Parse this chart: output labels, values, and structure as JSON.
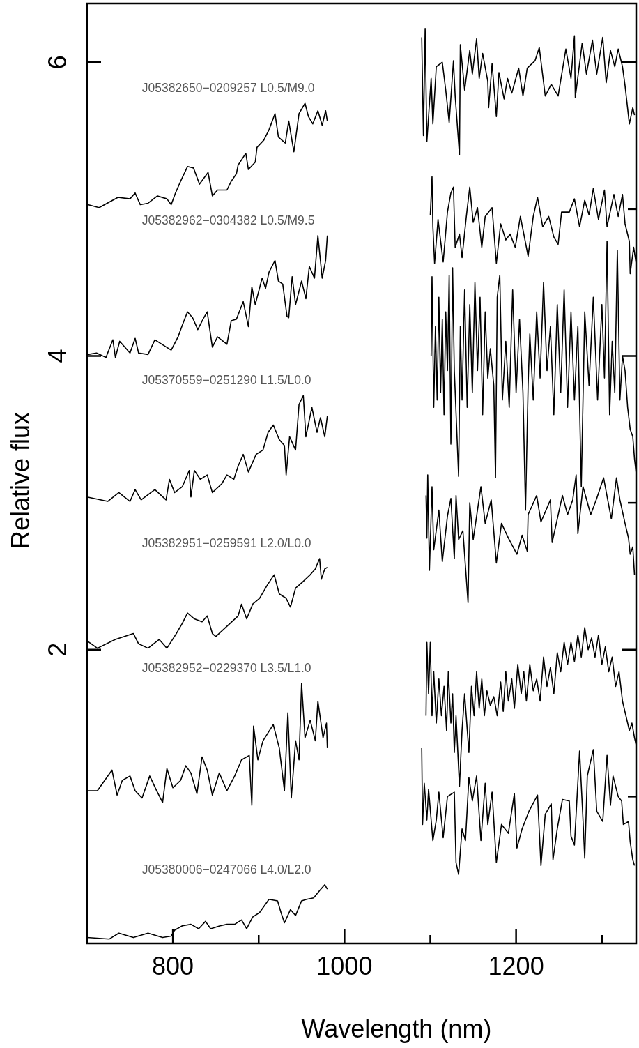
{
  "chart_data": {
    "type": "line",
    "xlabel": "Wavelength (nm)",
    "ylabel": "Relative flux",
    "xlim": [
      700,
      1340
    ],
    "ylim": [
      0,
      6.4
    ],
    "xticks": [
      800,
      {
        "value": 900,
        "label": null
      },
      1000,
      {
        "value": 1100,
        "label": null
      },
      1200,
      {
        "value": 1300,
        "label": null
      }
    ],
    "yticks": [
      {
        "value": 1,
        "label": null
      },
      2,
      {
        "value": 3,
        "label": null
      },
      4,
      {
        "value": 5,
        "label": null
      },
      6
    ],
    "series": [
      {
        "name": "J05382650−0209257 L0.5/M9.0",
        "color": "#000000",
        "x": [
          701,
          714,
          736,
          750,
          756,
          762,
          771,
          782,
          793,
          798,
          803,
          809,
          817,
          824,
          831,
          841,
          846,
          852,
          863,
          868,
          874,
          876,
          885,
          888,
          896,
          898,
          906,
          912,
          919,
          923,
          931,
          935,
          941,
          947,
          954,
          958,
          963,
          969,
          974,
          978,
          980,
          1040,
          1090,
          1092,
          1094,
          1096,
          1101,
          1103,
          1107,
          1114,
          1118,
          1122,
          1127,
          1129,
          1134,
          1135,
          1140,
          1146,
          1149,
          1154,
          1157,
          1161,
          1167,
          1168,
          1172,
          1177,
          1180,
          1186,
          1190,
          1195,
          1203,
          1208,
          1213,
          1222,
          1227,
          1234,
          1241,
          1249,
          1258,
          1264,
          1268,
          1269,
          1277,
          1282,
          1289,
          1294,
          1301,
          1305,
          1310,
          1315,
          1319,
          1324,
          1327,
          1332,
          1336,
          1338
        ],
        "values": [
          5.03,
          5.01,
          5.08,
          5.07,
          5.11,
          5.03,
          5.04,
          5.09,
          5.07,
          5.03,
          5.11,
          5.19,
          5.29,
          5.28,
          5.17,
          5.25,
          5.09,
          5.13,
          5.13,
          5.19,
          5.24,
          5.3,
          5.38,
          5.27,
          5.32,
          5.42,
          5.47,
          5.54,
          5.65,
          5.49,
          5.45,
          5.6,
          5.39,
          5.65,
          5.72,
          5.63,
          5.58,
          5.67,
          5.57,
          5.67,
          5.6,
          null,
          6.17,
          5.5,
          6.23,
          5.46,
          5.89,
          5.58,
          5.97,
          6.0,
          5.81,
          5.59,
          6.01,
          5.77,
          5.37,
          6.12,
          5.81,
          6.08,
          5.92,
          6.16,
          5.89,
          6.06,
          5.87,
          5.69,
          5.99,
          5.63,
          5.93,
          5.75,
          5.89,
          5.79,
          5.96,
          5.77,
          5.96,
          6.01,
          6.1,
          5.77,
          5.85,
          5.77,
          6.09,
          5.89,
          6.18,
          5.76,
          6.13,
          5.92,
          6.15,
          5.92,
          6.17,
          5.86,
          6.08,
          5.97,
          6.09,
          5.97,
          5.84,
          5.58,
          5.69,
          5.64
        ]
      },
      {
        "name": "J05382962−0304382 L0.5/M9.5",
        "color": "#000000",
        "x": [
          701,
          711,
          722,
          730,
          733,
          738,
          750,
          756,
          760,
          771,
          779,
          798,
          806,
          811,
          817,
          823,
          829,
          836,
          840,
          846,
          852,
          863,
          868,
          874,
          882,
          888,
          892,
          896,
          904,
          908,
          912,
          919,
          923,
          928,
          933,
          935,
          939,
          943,
          950,
          955,
          959,
          965,
          969,
          974,
          978,
          980,
          1040,
          1100,
          1102,
          1103,
          1105,
          1109,
          1115,
          1120,
          1124,
          1127,
          1129,
          1134,
          1137,
          1142,
          1146,
          1150,
          1155,
          1160,
          1164,
          1172,
          1177,
          1182,
          1188,
          1193,
          1199,
          1205,
          1214,
          1220,
          1225,
          1231,
          1238,
          1244,
          1249,
          1253,
          1262,
          1268,
          1274,
          1280,
          1285,
          1290,
          1296,
          1303,
          1306,
          1314,
          1319,
          1324,
          1327,
          1332,
          1333,
          1337,
          1340
        ],
        "values": [
          4.01,
          4.02,
          3.99,
          4.11,
          3.99,
          4.1,
          4.02,
          4.12,
          4.02,
          4.01,
          4.11,
          4.04,
          4.13,
          4.21,
          4.3,
          4.26,
          4.18,
          4.26,
          4.3,
          4.06,
          4.13,
          4.08,
          4.24,
          4.25,
          4.37,
          4.2,
          4.47,
          4.35,
          4.53,
          4.46,
          4.57,
          4.65,
          4.51,
          4.49,
          4.27,
          4.26,
          4.54,
          4.35,
          4.51,
          4.39,
          4.61,
          4.53,
          4.82,
          4.53,
          4.65,
          4.82,
          null,
          4.96,
          5.22,
          4.88,
          4.63,
          4.93,
          4.64,
          4.98,
          5.11,
          5.15,
          4.74,
          4.83,
          4.67,
          4.95,
          5.15,
          4.91,
          5.01,
          4.74,
          4.95,
          5.01,
          4.63,
          4.9,
          4.79,
          4.83,
          4.74,
          4.95,
          4.68,
          4.95,
          5.08,
          4.88,
          4.95,
          4.81,
          4.76,
          4.98,
          4.98,
          5.07,
          4.88,
          5.06,
          4.96,
          5.14,
          4.93,
          5.13,
          4.88,
          5.1,
          4.95,
          5.1,
          4.9,
          4.78,
          4.56,
          4.74,
          4.63
        ]
      },
      {
        "name": "J05370559−0251290 L1.5/L0.0",
        "color": "#000000",
        "x": [
          700,
          724,
          737,
          750,
          756,
          763,
          779,
          792,
          796,
          802,
          811,
          819,
          821,
          825,
          832,
          840,
          846,
          857,
          863,
          871,
          876,
          882,
          888,
          897,
          905,
          911,
          917,
          924,
          930,
          932,
          936,
          943,
          947,
          952,
          955,
          962,
          968,
          972,
          977,
          980,
          1040,
          1101,
          1102,
          1104,
          1106,
          1108,
          1110,
          1112,
          1114,
          1116,
          1118,
          1120,
          1122,
          1124,
          1126,
          1128,
          1133,
          1135,
          1137,
          1140,
          1143,
          1146,
          1149,
          1152,
          1155,
          1158,
          1161,
          1164,
          1167,
          1170,
          1174,
          1176,
          1178,
          1181,
          1184,
          1188,
          1192,
          1196,
          1200,
          1204,
          1208,
          1211,
          1214,
          1216,
          1220,
          1224,
          1228,
          1232,
          1236,
          1240,
          1244,
          1248,
          1252,
          1256,
          1260,
          1264,
          1268,
          1272,
          1276,
          1280,
          1285,
          1290,
          1295,
          1300,
          1303,
          1306,
          1309,
          1312,
          1315,
          1318,
          1321,
          1324,
          1327,
          1330,
          1333,
          1336,
          1338,
          1340
        ],
        "values": [
          3.04,
          3.01,
          3.07,
          3.01,
          3.09,
          3.02,
          3.09,
          3.02,
          3.16,
          3.07,
          3.11,
          3.22,
          3.04,
          3.22,
          3.16,
          3.19,
          3.07,
          3.13,
          3.19,
          3.16,
          3.25,
          3.33,
          3.21,
          3.33,
          3.36,
          3.48,
          3.53,
          3.43,
          3.39,
          3.19,
          3.45,
          3.36,
          3.67,
          3.73,
          3.45,
          3.65,
          3.48,
          3.58,
          3.45,
          3.59,
          null,
          4.0,
          4.54,
          3.65,
          4.2,
          3.7,
          4.4,
          3.75,
          4.25,
          3.6,
          4.3,
          3.9,
          4.55,
          3.4,
          4.6,
          3.9,
          3.18,
          4.2,
          3.7,
          4.45,
          3.65,
          4.35,
          3.75,
          4.5,
          3.9,
          4.4,
          3.6,
          4.3,
          3.85,
          4.05,
          3.8,
          3.17,
          4.4,
          4.55,
          3.7,
          4.1,
          3.65,
          4.45,
          3.75,
          4.25,
          3.75,
          2.95,
          3.8,
          4.15,
          3.7,
          4.3,
          3.85,
          4.5,
          3.9,
          4.2,
          3.6,
          4.35,
          3.75,
          4.45,
          3.65,
          4.3,
          3.7,
          4.2,
          3.11,
          4.3,
          3.8,
          4.4,
          3.7,
          4.35,
          3.85,
          4.78,
          3.6,
          4.1,
          3.75,
          4.72,
          3.7,
          4.0,
          3.9,
          3.65,
          3.5,
          3.45,
          3.3,
          3.2
        ]
      },
      {
        "name": "J05382951−0259591 L2.0/L0.0",
        "color": "#000000",
        "x": [
          700,
          712,
          733,
          754,
          760,
          771,
          784,
          793,
          804,
          811,
          817,
          825,
          834,
          840,
          846,
          850,
          863,
          876,
          880,
          886,
          893,
          901,
          910,
          918,
          924,
          932,
          937,
          943,
          951,
          960,
          966,
          971,
          973,
          977,
          980,
          1040,
          1095,
          1096,
          1097,
          1099,
          1102,
          1104,
          1110,
          1114,
          1120,
          1124,
          1128,
          1130,
          1133,
          1138,
          1144,
          1146,
          1150,
          1159,
          1164,
          1171,
          1177,
          1183,
          1191,
          1201,
          1207,
          1213,
          1214,
          1224,
          1229,
          1240,
          1242,
          1254,
          1260,
          1266,
          1270,
          1272,
          1278,
          1287,
          1294,
          1302,
          1311,
          1317,
          1321,
          1327,
          1331,
          1333,
          1336,
          1338
        ],
        "values": [
          2.06,
          2.01,
          2.07,
          2.11,
          2.04,
          2.01,
          2.07,
          2.01,
          2.11,
          2.18,
          2.25,
          2.21,
          2.19,
          2.23,
          2.11,
          2.09,
          2.16,
          2.23,
          2.31,
          2.21,
          2.31,
          2.35,
          2.44,
          2.51,
          2.38,
          2.35,
          2.29,
          2.42,
          2.46,
          2.51,
          2.55,
          2.62,
          2.48,
          2.55,
          2.56,
          null,
          3.05,
          2.76,
          3.19,
          2.54,
          3.11,
          2.68,
          2.95,
          2.6,
          2.91,
          3.03,
          2.62,
          3.05,
          2.75,
          2.81,
          2.32,
          3.0,
          2.75,
          3.11,
          2.86,
          3.02,
          2.59,
          2.86,
          2.76,
          2.65,
          2.78,
          2.67,
          2.92,
          3.05,
          2.87,
          3.02,
          2.73,
          3.05,
          2.92,
          3.02,
          3.19,
          2.79,
          3.11,
          2.92,
          3.03,
          3.17,
          2.89,
          3.17,
          3.02,
          2.86,
          2.76,
          2.65,
          2.7,
          2.51
        ]
      },
      {
        "name": "J05382952−0229370 L3.5/L1.0",
        "color": "#000000",
        "x": [
          700,
          712,
          729,
          735,
          741,
          750,
          756,
          764,
          773,
          781,
          788,
          793,
          800,
          809,
          815,
          821,
          828,
          834,
          840,
          846,
          854,
          863,
          872,
          880,
          889,
          892,
          894,
          899,
          905,
          917,
          924,
          930,
          934,
          938,
          943,
          947,
          950,
          954,
          960,
          966,
          969,
          975,
          979,
          980,
          1040,
          1095,
          1096,
          1098,
          1100,
          1102,
          1104,
          1107,
          1110,
          1113,
          1116,
          1119,
          1121,
          1124,
          1126,
          1128,
          1130,
          1134,
          1137,
          1140,
          1145,
          1148,
          1151,
          1154,
          1157,
          1160,
          1163,
          1166,
          1170,
          1174,
          1178,
          1182,
          1185,
          1188,
          1191,
          1195,
          1198,
          1202,
          1206,
          1209,
          1212,
          1216,
          1220,
          1224,
          1228,
          1232,
          1236,
          1240,
          1244,
          1248,
          1252,
          1256,
          1260,
          1264,
          1268,
          1272,
          1276,
          1280,
          1284,
          1288,
          1292,
          1296,
          1300,
          1304,
          1308,
          1312,
          1316,
          1320,
          1324,
          1328,
          1332,
          1335,
          1338,
          1340
        ],
        "values": [
          1.04,
          1.04,
          1.18,
          1.01,
          1.11,
          1.14,
          1.04,
          0.99,
          1.14,
          1.04,
          0.96,
          1.19,
          1.06,
          1.11,
          1.21,
          1.16,
          1.02,
          1.27,
          1.18,
          1.01,
          1.16,
          1.04,
          1.14,
          1.25,
          1.28,
          0.94,
          1.48,
          1.25,
          1.38,
          1.49,
          1.33,
          1.04,
          1.57,
          0.99,
          1.38,
          1.25,
          1.77,
          1.4,
          1.52,
          1.38,
          1.65,
          1.4,
          1.5,
          1.33,
          null,
          1.55,
          2.05,
          1.7,
          2.05,
          1.55,
          1.85,
          1.5,
          1.8,
          1.55,
          1.75,
          1.45,
          1.85,
          1.5,
          1.7,
          1.3,
          1.55,
          1.07,
          1.45,
          1.7,
          1.3,
          1.75,
          1.55,
          1.85,
          1.6,
          1.8,
          1.55,
          1.72,
          1.62,
          1.68,
          1.55,
          1.78,
          1.58,
          1.85,
          1.65,
          1.8,
          1.6,
          1.9,
          1.7,
          1.85,
          1.65,
          1.9,
          1.72,
          1.8,
          1.65,
          1.95,
          1.75,
          1.88,
          1.7,
          1.98,
          1.85,
          2.05,
          1.9,
          2.05,
          1.92,
          2.1,
          1.95,
          2.15,
          2.0,
          2.08,
          1.95,
          2.1,
          1.9,
          2.02,
          1.85,
          1.95,
          1.75,
          1.85,
          1.65,
          1.55,
          1.45,
          1.5,
          1.4,
          1.35
        ]
      },
      {
        "name": "J05380006−0247066 L4.0/L2.0",
        "color": "#000000",
        "x": [
          700,
          726,
          737,
          754,
          771,
          788,
          798,
          802,
          811,
          821,
          830,
          838,
          844,
          855,
          863,
          872,
          880,
          886,
          893,
          901,
          912,
          922,
          926,
          930,
          937,
          943,
          950,
          956,
          964,
          971,
          977,
          980,
          1040,
          1090,
          1091,
          1093,
          1096,
          1098,
          1103,
          1107,
          1110,
          1115,
          1120,
          1128,
          1130,
          1133,
          1137,
          1141,
          1145,
          1149,
          1154,
          1159,
          1164,
          1167,
          1172,
          1177,
          1183,
          1191,
          1198,
          1201,
          1207,
          1215,
          1225,
          1229,
          1234,
          1241,
          1243,
          1248,
          1254,
          1262,
          1264,
          1268,
          1274,
          1278,
          1280,
          1283,
          1290,
          1294,
          1301,
          1306,
          1310,
          1313,
          1319,
          1323,
          1325,
          1331,
          1333,
          1336,
          1338
        ],
        "values": [
          0.04,
          0.03,
          0.07,
          0.04,
          0.07,
          0.04,
          0.05,
          0.09,
          0.12,
          0.13,
          0.1,
          0.15,
          0.1,
          0.12,
          0.13,
          0.13,
          0.16,
          0.1,
          0.18,
          0.21,
          0.3,
          0.29,
          0.21,
          0.14,
          0.23,
          0.19,
          0.29,
          0.3,
          0.31,
          0.36,
          0.4,
          0.37,
          null,
          1.33,
          0.81,
          1.09,
          0.84,
          1.05,
          0.7,
          0.84,
          1.03,
          0.72,
          1.0,
          1.03,
          0.55,
          0.47,
          0.78,
          0.7,
          1.13,
          0.97,
          1.14,
          0.7,
          1.09,
          0.81,
          1.03,
          0.55,
          0.81,
          0.75,
          1.02,
          0.65,
          0.78,
          0.9,
          1.01,
          0.53,
          0.88,
          0.95,
          0.57,
          0.78,
          0.98,
          0.97,
          0.73,
          0.67,
          1.31,
          0.84,
          0.58,
          1.14,
          1.32,
          0.9,
          0.83,
          1.28,
          0.94,
          1.14,
          1.0,
          0.97,
          0.81,
          0.83,
          0.69,
          0.57,
          0.53
        ]
      }
    ]
  }
}
